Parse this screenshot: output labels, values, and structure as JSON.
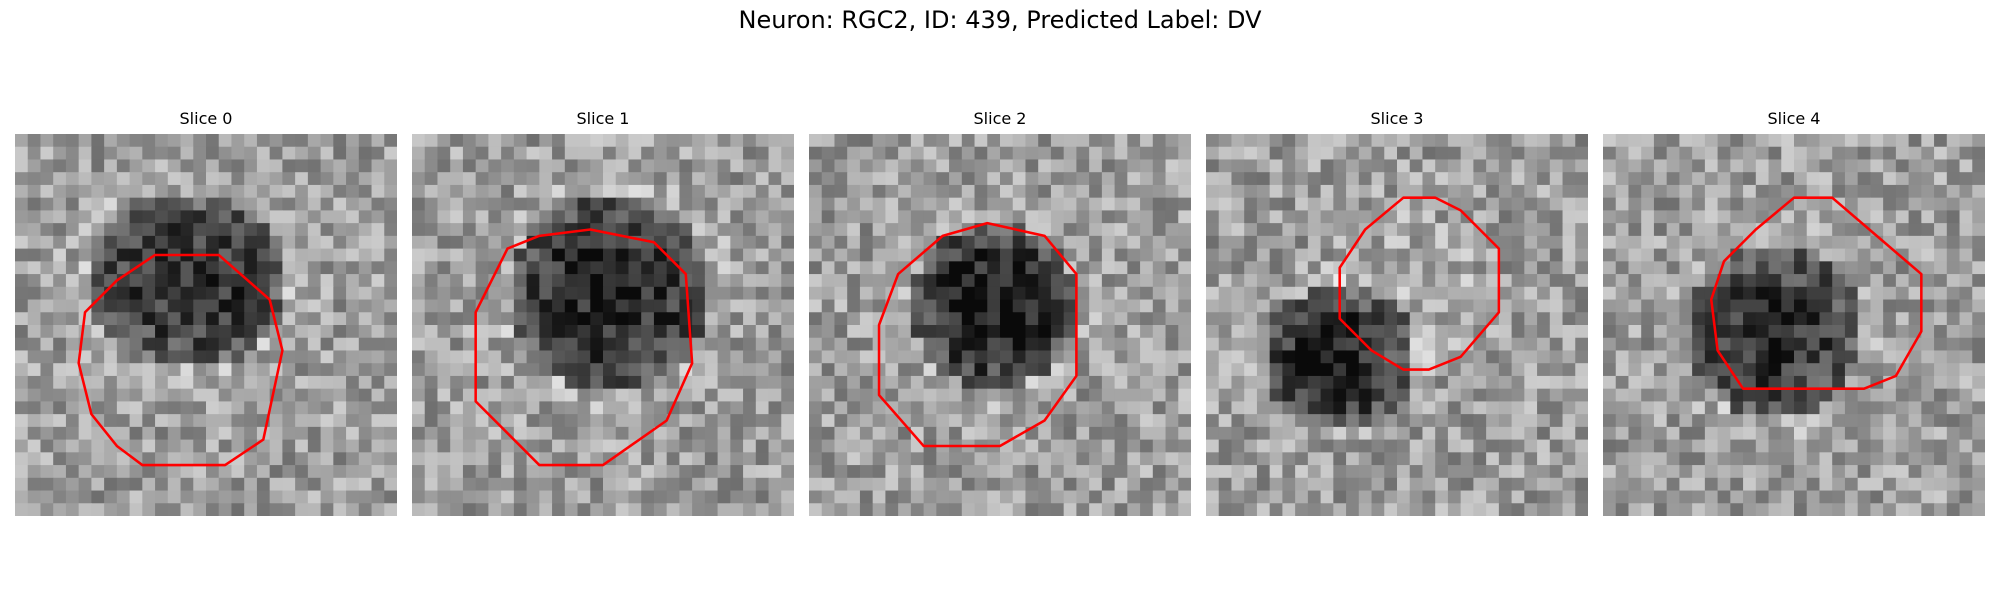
{
  "figure": {
    "title": "Neuron: RGC2, ID: 439, Predicted Label: DV",
    "contour_color": "#ff0000"
  },
  "panels": [
    {
      "title": "Slice 0"
    },
    {
      "title": "Slice 1"
    },
    {
      "title": "Slice 2"
    },
    {
      "title": "Slice 3"
    },
    {
      "title": "Slice 4"
    }
  ]
}
